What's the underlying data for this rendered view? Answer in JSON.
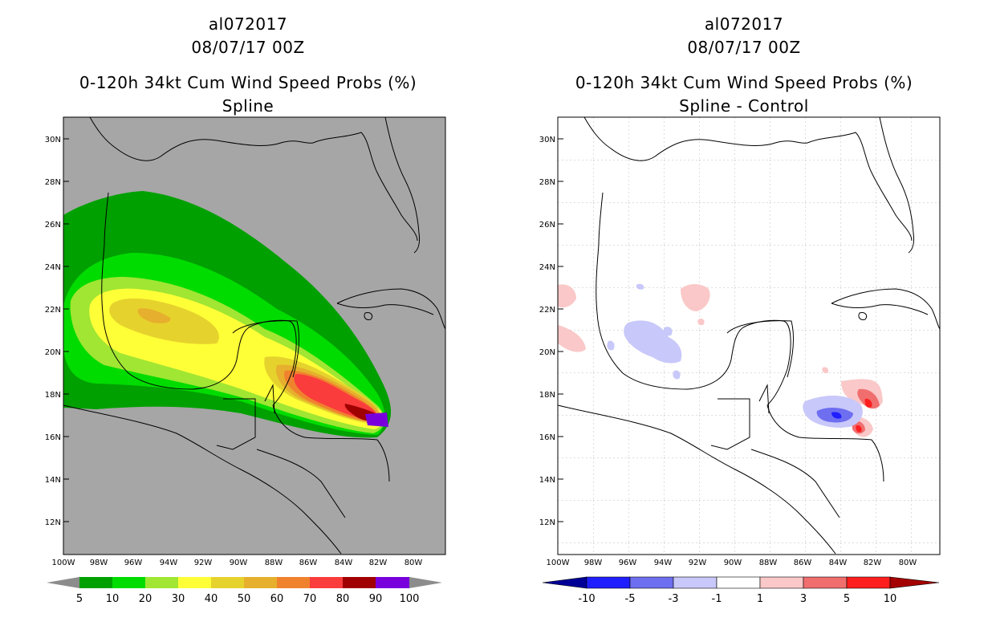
{
  "panels": [
    {
      "storm_id": "al072017",
      "datetime": "08/07/17 00Z",
      "product_title": "0-120h 34kt Cum Wind Speed Probs (%)",
      "subtitle": "Spline",
      "colorbar": {
        "labels": [
          "5",
          "10",
          "20",
          "30",
          "40",
          "50",
          "60",
          "70",
          "80",
          "90",
          "100"
        ],
        "colors": [
          "#8c8c8c",
          "#00a000",
          "#00dc00",
          "#a0e632",
          "#ffff37",
          "#e6d22d",
          "#e6af2d",
          "#f0822d",
          "#fa3c3c",
          "#a00000",
          "#7800dc"
        ]
      }
    },
    {
      "storm_id": "al072017",
      "datetime": "08/07/17 00Z",
      "product_title": "0-120h 34kt Cum Wind Speed Probs (%)",
      "subtitle": "Spline - Control",
      "colorbar": {
        "labels": [
          "-10",
          "-5",
          "-3",
          "-1",
          "1",
          "3",
          "5",
          "10"
        ],
        "colors": [
          "#000096",
          "#1e1eff",
          "#6e6ef0",
          "#c8c8fa",
          "#ffffff",
          "#fac8c8",
          "#f06e6e",
          "#ff1e1e",
          "#a50000"
        ]
      }
    }
  ],
  "map_axes": {
    "lat_labels": [
      "30N",
      "28N",
      "26N",
      "24N",
      "22N",
      "20N",
      "18N",
      "16N",
      "14N",
      "12N"
    ],
    "lon_labels": [
      "100W",
      "98W",
      "96W",
      "94W",
      "92W",
      "90W",
      "88W",
      "86W",
      "84W",
      "82W",
      "80W"
    ]
  }
}
